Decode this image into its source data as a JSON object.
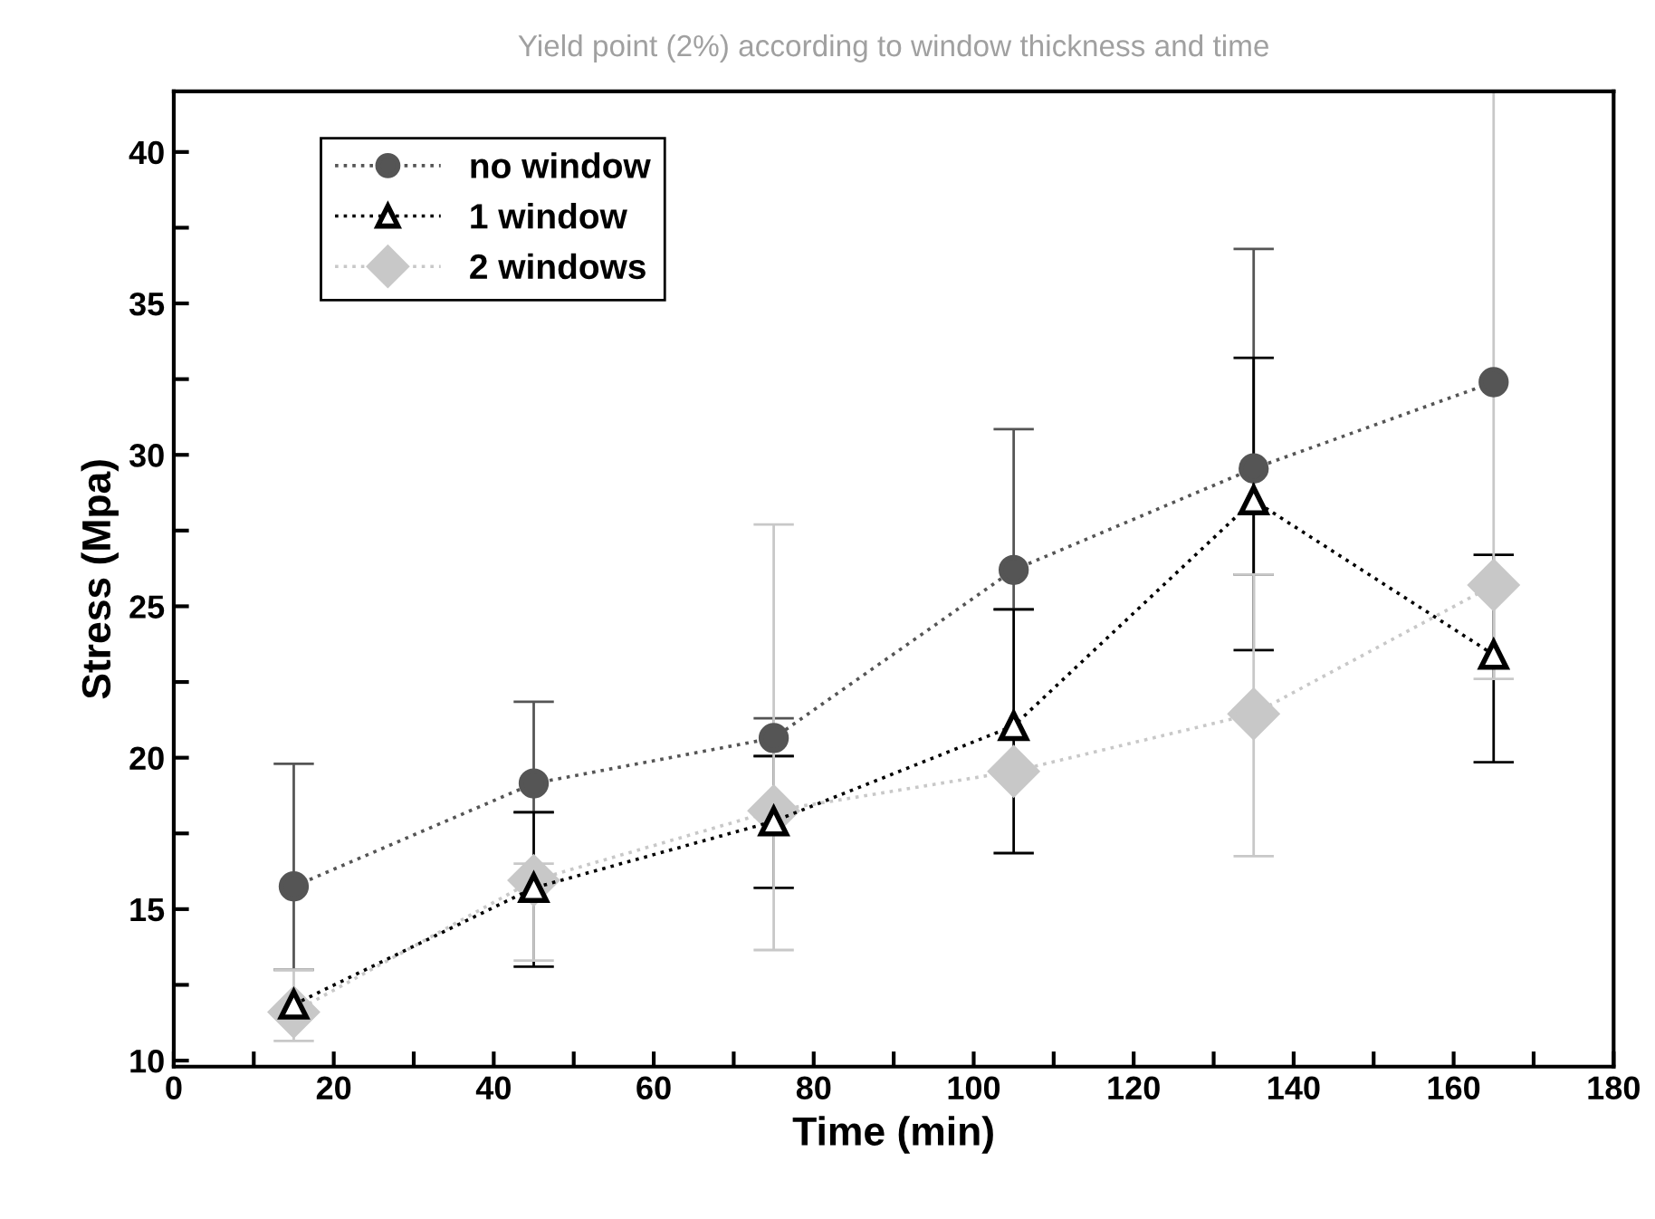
{
  "chart_data": {
    "type": "line",
    "title": "Yield point (2%) according to window thickness and time",
    "xlabel": "Time (min)",
    "ylabel": "Stress (Mpa)",
    "x": [
      15,
      45,
      75,
      105,
      135,
      165
    ],
    "series": [
      {
        "name": "no window",
        "color": "#555555",
        "marker": "circle",
        "values": [
          15.75,
          19.15,
          20.65,
          26.2,
          29.55,
          32.4
        ],
        "errors": [
          [
            13.0,
            19.8
          ],
          [
            18.2,
            21.85
          ],
          [
            20.05,
            21.3
          ],
          [
            24.9,
            30.85
          ],
          [
            26.05,
            36.8
          ],
          null
        ]
      },
      {
        "name": "1 window",
        "color": "#000000",
        "marker": "triangle",
        "values": [
          11.85,
          15.7,
          17.9,
          21.05,
          28.5,
          23.4
        ],
        "errors": [
          null,
          [
            13.1,
            18.2
          ],
          [
            15.7,
            20.05
          ],
          [
            16.85,
            24.9
          ],
          [
            23.55,
            33.2
          ],
          [
            19.85,
            26.7
          ]
        ]
      },
      {
        "name": "2 windows",
        "color": "#c8c8c8",
        "marker": "diamond",
        "values": [
          11.6,
          15.95,
          18.25,
          19.55,
          21.45,
          25.7
        ],
        "errors": [
          [
            10.65,
            13.0
          ],
          [
            13.3,
            16.5
          ],
          [
            13.65,
            27.7
          ],
          null,
          [
            16.75,
            26.05
          ],
          [
            22.6,
            42.0
          ]
        ]
      }
    ],
    "line_style": "dotted",
    "legend": "top left",
    "grid": false,
    "xlim": [
      0,
      180
    ],
    "xticks": [
      0,
      {
        "value": 10,
        "label": null
      },
      20,
      {
        "value": 30,
        "label": null
      },
      40,
      {
        "value": 50,
        "label": null
      },
      60,
      {
        "value": 70,
        "label": null
      },
      80,
      {
        "value": 90,
        "label": null
      },
      100,
      {
        "value": 110,
        "label": null
      },
      120,
      {
        "value": 130,
        "label": null
      },
      140,
      {
        "value": 150,
        "label": null
      },
      160,
      {
        "value": 170,
        "label": null
      },
      180
    ],
    "ylim": [
      9.8,
      42
    ],
    "yticks": [
      10,
      {
        "value": 12.5,
        "label": null
      },
      15,
      {
        "value": 17.5,
        "label": null
      },
      20,
      {
        "value": 22.5,
        "label": null
      },
      25,
      {
        "value": 27.5,
        "label": null
      },
      30,
      {
        "value": 32.5,
        "label": null
      },
      35,
      {
        "value": 37.5,
        "label": null
      },
      40
    ]
  }
}
